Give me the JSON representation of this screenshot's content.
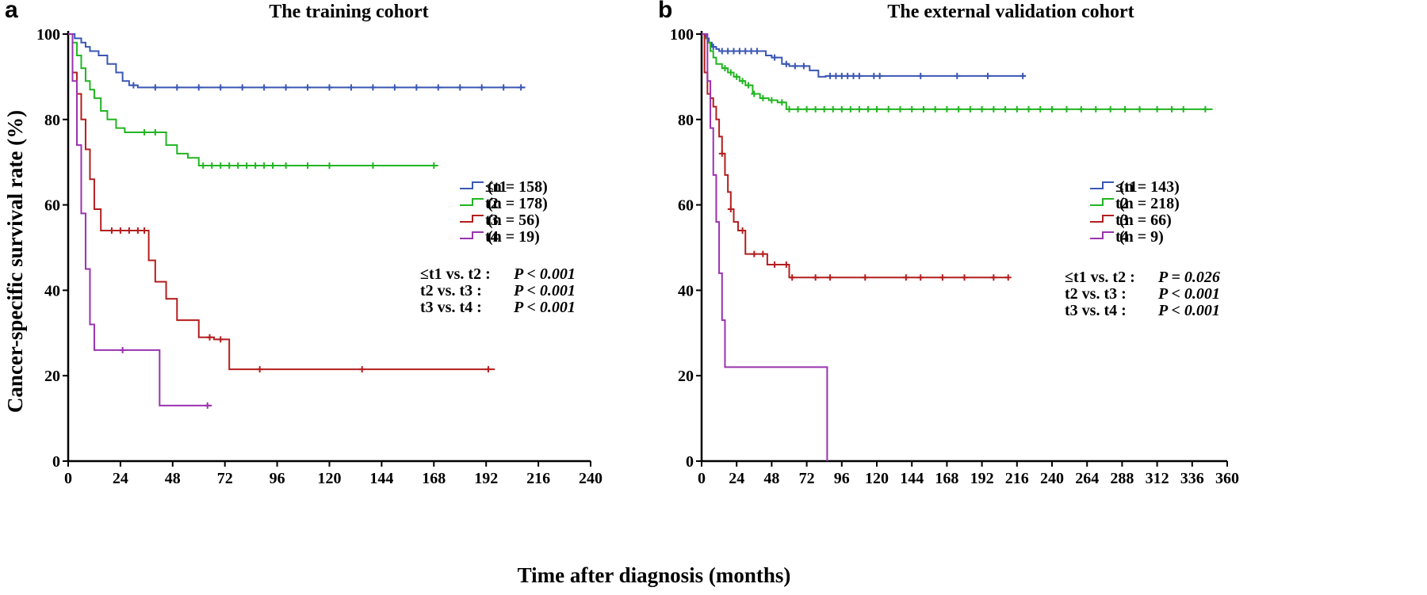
{
  "figure": {
    "ylabel": "Cancer-specific survival rate (%)",
    "xlabel": "Time after diagnosis (months)"
  },
  "colors": {
    "t1": "#3a57b4",
    "t2": "#22b522",
    "t3": "#b41e1e",
    "t4": "#9b32b0"
  },
  "chart_data": [
    {
      "type": "line",
      "panel_letter": "a",
      "title": "The training cohort",
      "ylim": [
        0,
        100
      ],
      "xlim": [
        0,
        240
      ],
      "xticks": [
        0,
        24,
        48,
        72,
        96,
        120,
        144,
        168,
        192,
        216,
        240
      ],
      "yticks": [
        0,
        20,
        40,
        60,
        80,
        100
      ],
      "grid": false,
      "legend_position": "right-middle",
      "series": [
        {
          "key": "t1",
          "name": "≤t1",
          "n_label": "(n = 158)",
          "x": [
            0,
            3,
            6,
            8,
            10,
            14,
            18,
            22,
            25,
            28,
            32,
            210
          ],
          "y": [
            100,
            99,
            98,
            97,
            96,
            95,
            93,
            91,
            89,
            88,
            87.5,
            87.5
          ],
          "censor_x": [
            30,
            40,
            50,
            60,
            70,
            80,
            90,
            100,
            110,
            120,
            130,
            140,
            150,
            160,
            170,
            180,
            190,
            200,
            208
          ]
        },
        {
          "key": "t2",
          "name": "t2",
          "n_label": "(n = 178)",
          "x": [
            0,
            2,
            4,
            6,
            8,
            10,
            12,
            15,
            18,
            22,
            26,
            30,
            45,
            50,
            55,
            60,
            170
          ],
          "y": [
            100,
            98,
            95,
            92,
            89,
            87,
            85,
            82,
            80,
            78,
            77,
            77,
            74,
            72,
            71,
            69.2,
            69.2
          ],
          "censor_x": [
            35,
            40,
            62,
            66,
            70,
            74,
            78,
            82,
            86,
            90,
            94,
            100,
            110,
            120,
            140,
            168
          ]
        },
        {
          "key": "t3",
          "name": "t3",
          "n_label": "(n = 56)",
          "x": [
            0,
            2,
            4,
            6,
            8,
            10,
            12,
            15,
            37,
            40,
            45,
            50,
            60,
            67,
            70,
            74,
            196
          ],
          "y": [
            100,
            91,
            86,
            80,
            73,
            66,
            59,
            54,
            47,
            42,
            38,
            33,
            29,
            28.5,
            28.5,
            21.5,
            21.5
          ],
          "censor_x": [
            20,
            24,
            28,
            32,
            35,
            65,
            70,
            88,
            135,
            193
          ]
        },
        {
          "key": "t4",
          "name": "t4",
          "n_label": "(n = 19)",
          "x": [
            0,
            2,
            4,
            6,
            8,
            10,
            12,
            42,
            66
          ],
          "y": [
            100,
            89,
            74,
            58,
            45,
            32,
            26,
            13,
            13
          ],
          "censor_x": [
            25,
            64
          ]
        }
      ],
      "comparisons": [
        {
          "label": "≤t1 vs. t2 :",
          "p": "P < 0.001"
        },
        {
          "label": "t2   vs. t3 :",
          "p": "P < 0.001"
        },
        {
          "label": "t3   vs. t4 :",
          "p": "P < 0.001"
        }
      ]
    },
    {
      "type": "line",
      "panel_letter": "b",
      "title": "The external validation cohort",
      "ylim": [
        0,
        100
      ],
      "xlim": [
        0,
        360
      ],
      "xticks": [
        0,
        24,
        48,
        72,
        96,
        120,
        144,
        168,
        192,
        216,
        240,
        264,
        288,
        312,
        336,
        360
      ],
      "yticks": [
        0,
        20,
        40,
        60,
        80,
        100
      ],
      "grid": false,
      "legend_position": "right-middle",
      "series": [
        {
          "key": "t1",
          "name": "≤t1",
          "n_label": "(n = 143)",
          "x": [
            0,
            3,
            5,
            7,
            10,
            12,
            40,
            44,
            48,
            55,
            60,
            68,
            74,
            80,
            85,
            222
          ],
          "y": [
            100,
            99,
            98,
            97,
            96.5,
            96,
            96,
            95,
            94.5,
            93,
            92.5,
            92.5,
            91.5,
            90,
            90.2,
            90.2
          ],
          "censor_x": [
            8,
            14,
            18,
            22,
            26,
            30,
            34,
            38,
            50,
            58,
            64,
            70,
            88,
            92,
            96,
            100,
            104,
            108,
            118,
            122,
            150,
            175,
            196,
            220
          ]
        },
        {
          "key": "t2",
          "name": "t2",
          "n_label": "(n = 218)",
          "x": [
            0,
            2,
            4,
            6,
            8,
            10,
            14,
            18,
            22,
            26,
            30,
            35,
            40,
            46,
            52,
            58,
            350
          ],
          "y": [
            100,
            99,
            98,
            96,
            94.5,
            93,
            92,
            91,
            90,
            89,
            88,
            86,
            85,
            84.5,
            84,
            82.4,
            82.4
          ],
          "censor_x": [
            16,
            20,
            24,
            28,
            32,
            36,
            42,
            48,
            55,
            60,
            66,
            72,
            78,
            84,
            90,
            96,
            102,
            108,
            114,
            120,
            128,
            136,
            144,
            152,
            160,
            168,
            176,
            184,
            192,
            200,
            208,
            216,
            224,
            232,
            240,
            250,
            260,
            270,
            280,
            290,
            300,
            312,
            322,
            330,
            345
          ]
        },
        {
          "key": "t3",
          "name": "t3",
          "n_label": "(n = 66)",
          "x": [
            0,
            2,
            4,
            6,
            8,
            10,
            12,
            14,
            16,
            18,
            20,
            22,
            25,
            30,
            38,
            45,
            55,
            60,
            210
          ],
          "y": [
            100,
            91,
            86,
            85,
            83,
            80,
            76,
            72,
            67,
            63,
            59,
            56,
            54,
            48.5,
            48.5,
            46,
            46,
            43,
            43
          ],
          "censor_x": [
            14,
            20,
            28,
            36,
            42,
            50,
            58,
            62,
            78,
            88,
            112,
            140,
            150,
            165,
            180,
            200,
            210
          ]
        },
        {
          "key": "t4",
          "name": "t4",
          "n_label": "(n = 9)",
          "x": [
            0,
            4,
            6,
            8,
            10,
            12,
            14,
            16,
            86,
            86
          ],
          "y": [
            100,
            89,
            78,
            67,
            56,
            44,
            33,
            22,
            11,
            0
          ],
          "censor_x": []
        }
      ],
      "comparisons": [
        {
          "label": "≤t1 vs. t2 :",
          "p": "P = 0.026"
        },
        {
          "label": "t2   vs. t3 :",
          "p": "P < 0.001"
        },
        {
          "label": "t3   vs. t4 :",
          "p": "P < 0.001"
        }
      ]
    }
  ]
}
